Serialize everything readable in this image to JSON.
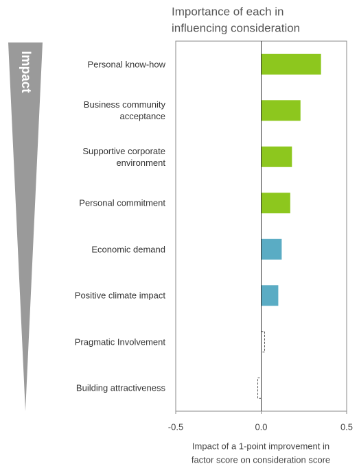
{
  "chart_data": {
    "type": "hbar",
    "title": [
      "Importance of each in",
      "influencing consideration"
    ],
    "side_label": "Impact",
    "categories": [
      "Personal know-how",
      "Business community acceptance",
      "Supportive corporate environment",
      "Personal commitment",
      "Economic demand",
      "Positive climate impact",
      "Pragmatic Involvement",
      "Building attractiveness"
    ],
    "values": [
      0.35,
      0.23,
      0.18,
      0.17,
      0.12,
      0.1,
      0.02,
      -0.02
    ],
    "colors": [
      "#8dc71e",
      "#8dc71e",
      "#8dc71e",
      "#8dc71e",
      "#5aacc4",
      "#5aacc4",
      "none",
      "none"
    ],
    "xlim": [
      -0.5,
      0.5
    ],
    "xticks": [
      -0.5,
      {
        "value": 0,
        "label": "0.0"
      },
      0.5
    ],
    "xlabel": [
      "Impact of a 1-point improvement in",
      "factor score on consideration score"
    ]
  }
}
